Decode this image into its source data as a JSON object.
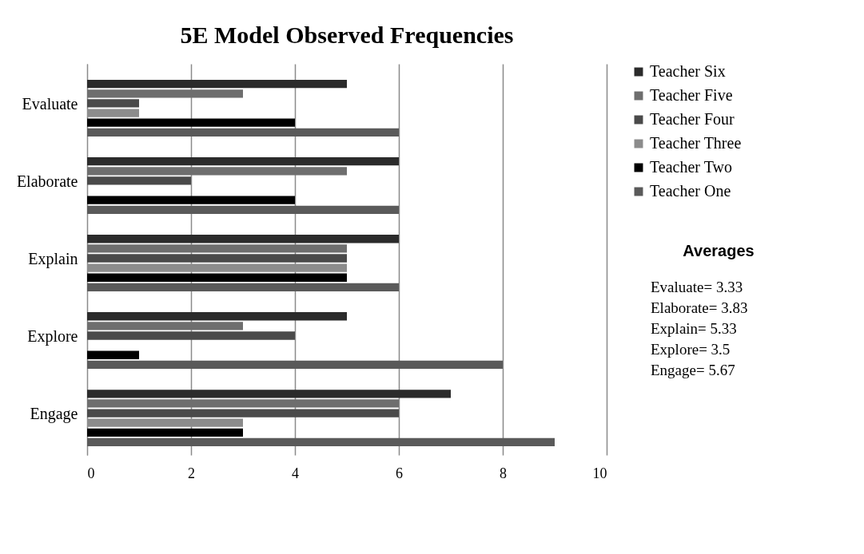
{
  "chart_data": {
    "type": "bar",
    "orientation": "horizontal",
    "title": "5E Model Observed Frequencies",
    "categories": [
      "Evaluate",
      "Elaborate",
      "Explain",
      "Explore",
      "Engage"
    ],
    "series": [
      {
        "name": "Teacher Six",
        "color": "#2b2b2b",
        "values": [
          5,
          6,
          6,
          5,
          7
        ]
      },
      {
        "name": "Teacher Five",
        "color": "#6e6e6e",
        "values": [
          3,
          5,
          5,
          3,
          6
        ]
      },
      {
        "name": "Teacher Four",
        "color": "#4a4a4a",
        "values": [
          1,
          2,
          5,
          4,
          6
        ]
      },
      {
        "name": "Teacher Three",
        "color": "#8c8c8c",
        "values": [
          1,
          0,
          5,
          0,
          3
        ]
      },
      {
        "name": "Teacher Two",
        "color": "#000000",
        "values": [
          4,
          4,
          5,
          1,
          3
        ]
      },
      {
        "name": "Teacher One",
        "color": "#5a5a5a",
        "values": [
          6,
          6,
          6,
          8,
          9
        ]
      }
    ],
    "xlim": [
      0,
      10
    ],
    "xticks": [
      0,
      2,
      4,
      6,
      8,
      10
    ],
    "grid": "x",
    "legend": "top right",
    "annotations": [
      "Averages",
      "Evaluate= 3.33",
      "Elaborate= 3.83",
      "Explain=  5.33",
      "Explore= 3.5",
      "Engage= 5.67"
    ]
  }
}
